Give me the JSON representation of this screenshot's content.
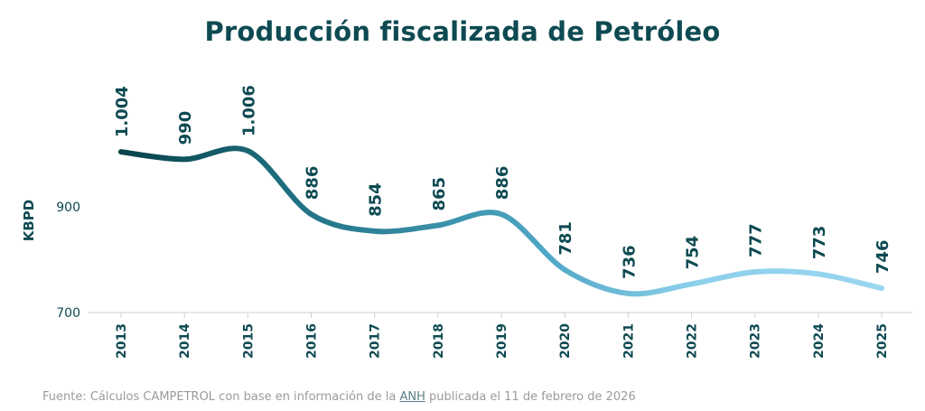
{
  "title": "Producción fiscalizada de Petróleo",
  "chart_data": {
    "type": "line",
    "title": "Producción fiscalizada de Petróleo",
    "xlabel": "",
    "ylabel": "KBPD",
    "categories": [
      "2013",
      "2014",
      "2015",
      "2016",
      "2017",
      "2018",
      "2019",
      "2020",
      "2021",
      "2022",
      "2023",
      "2024",
      "2025"
    ],
    "series": [
      {
        "name": "Producción fiscalizada de Petróleo",
        "values": [
          1004,
          990,
          1006,
          886,
          854,
          865,
          886,
          781,
          736,
          754,
          777,
          773,
          746
        ]
      }
    ],
    "data_labels": [
      "1.004",
      "990",
      "1.006",
      "886",
      "854",
      "865",
      "886",
      "781",
      "736",
      "754",
      "777",
      "773",
      "746"
    ],
    "yticks": [
      700,
      900
    ],
    "ytick_labels": [
      "700",
      "900"
    ],
    "ylim": [
      700,
      1010
    ],
    "grid": false,
    "legend": "none",
    "gradient_colors": [
      "#07424a",
      "#1f6f80",
      "#4da6c4",
      "#8ccfea",
      "#9ad6f0"
    ]
  },
  "footer": {
    "prefix": "Fuente: Cálculos CAMPETROL con base en información de la ",
    "link": "ANH",
    "suffix": " publicada el 11 de febrero de 2026"
  }
}
